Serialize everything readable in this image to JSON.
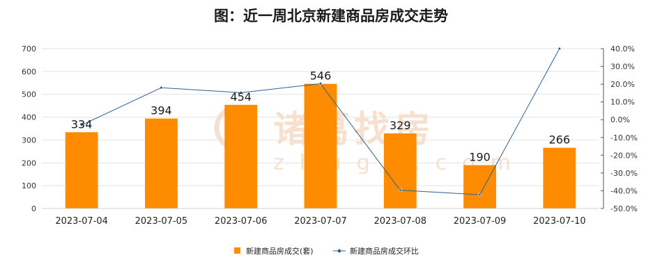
{
  "chart_data": {
    "type": "bar",
    "title": "图：近一周北京新建商品房成交走势",
    "categories": [
      "2023-07-04",
      "2023-07-05",
      "2023-07-06",
      "2023-07-07",
      "2023-07-08",
      "2023-07-09",
      "2023-07-10"
    ],
    "series": [
      {
        "name": "新建商品房成交(套)",
        "type": "bar",
        "axis": "left",
        "color": "#ff8c00",
        "values": [
          334,
          394,
          454,
          546,
          329,
          190,
          266
        ]
      },
      {
        "name": "新建商品房成交环比",
        "type": "line",
        "axis": "right",
        "color": "#2e5f8a",
        "values": [
          -3.0,
          18.0,
          15.2,
          20.3,
          -39.7,
          -42.2,
          40.0
        ]
      }
    ],
    "y_left": {
      "min": 0,
      "max": 700,
      "ticks": [
        "0",
        "100",
        "200",
        "300",
        "400",
        "500",
        "600",
        "700"
      ]
    },
    "y_right": {
      "min": -50,
      "max": 40,
      "ticks": [
        "-50.0%",
        "-40.0%",
        "-30.0%",
        "-20.0%",
        "-10.0%",
        "0.0%",
        "10.0%",
        "20.0%",
        "30.0%",
        "40.0%"
      ]
    },
    "grid": true,
    "legend_position": "bottom"
  },
  "watermark": {
    "brand": "诸葛找房",
    "domain": "zhuge.com"
  }
}
